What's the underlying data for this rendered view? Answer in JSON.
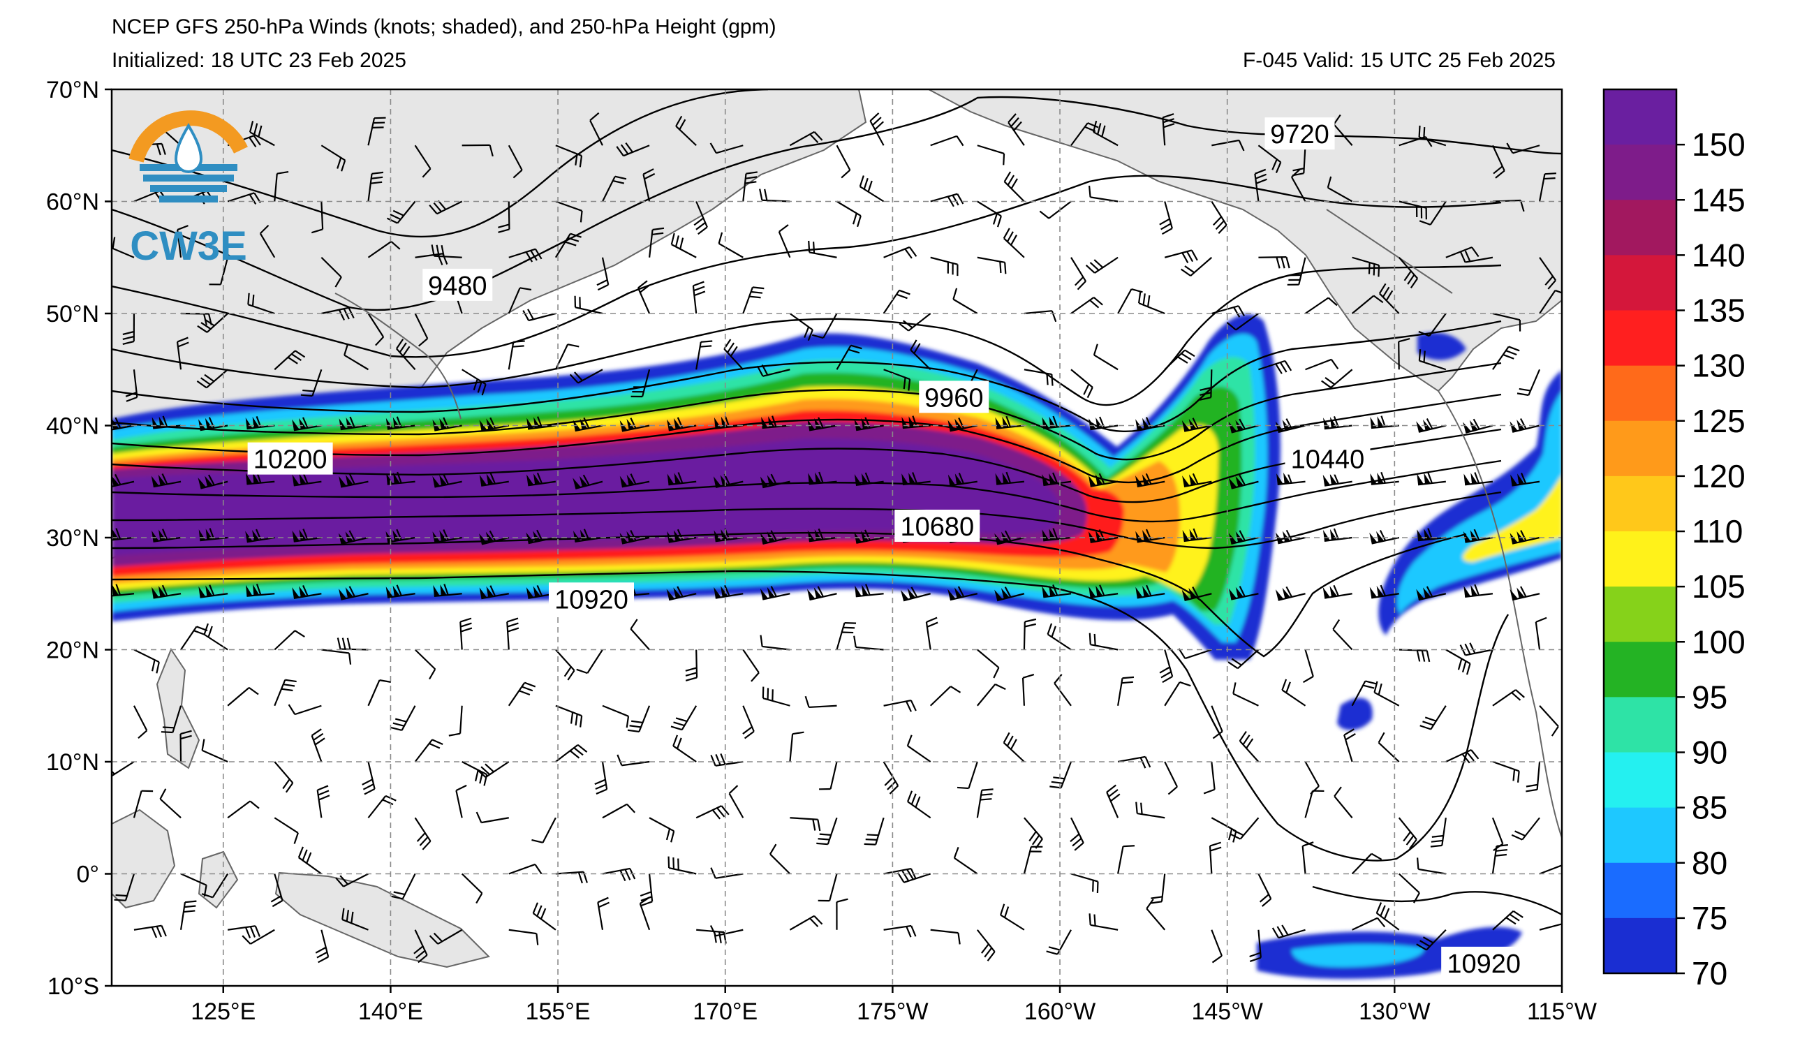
{
  "title": {
    "line1": "NCEP GFS 250-hPa Winds (knots; shaded), and 250-hPa Height (gpm)",
    "initialized": "Initialized: 18 UTC 23 Feb 2025",
    "valid": "F-045  Valid: 15 UTC 25 Feb 2025"
  },
  "logo": {
    "text": "CW3E",
    "icon": "water-drop-sun-icon"
  },
  "axes": {
    "lat_labels": [
      "70°N",
      "60°N",
      "50°N",
      "40°N",
      "30°N",
      "20°N",
      "10°N",
      "0°",
      "10°S"
    ],
    "lon_labels": [
      "125°E",
      "140°E",
      "155°E",
      "170°E",
      "175°W",
      "160°W",
      "145°W",
      "130°W",
      "115°W"
    ],
    "lat_range": [
      -10,
      70
    ],
    "lon_range_east": [
      115,
      245
    ]
  },
  "colorbar": {
    "labels": [
      "150",
      "145",
      "140",
      "135",
      "130",
      "125",
      "120",
      "110",
      "105",
      "100",
      "95",
      "90",
      "85",
      "80",
      "75",
      "70"
    ],
    "colors": [
      "#6a1fa0",
      "#7e1c8a",
      "#a2185f",
      "#d4173b",
      "#ff1f1f",
      "#ff6a1a",
      "#ff9a1a",
      "#ffc81a",
      "#fff21a",
      "#86d21a",
      "#24b324",
      "#2ee3a6",
      "#24f0f0",
      "#1ec8ff",
      "#1a6cff",
      "#1a2ed2"
    ]
  },
  "contours": {
    "labels": [
      {
        "text": "9480",
        "lat": 52.5,
        "lon": 146
      },
      {
        "text": "9720",
        "lat": 66,
        "lon": 221.5
      },
      {
        "text": "9960",
        "lat": 42.5,
        "lon": 190.5
      },
      {
        "text": "10200",
        "lat": 37,
        "lon": 131
      },
      {
        "text": "10440",
        "lat": 37,
        "lon": 224
      },
      {
        "text": "10680",
        "lat": 31,
        "lon": 189
      },
      {
        "text": "10920",
        "lat": 24.5,
        "lon": 158
      },
      {
        "text": "10920",
        "lat": -8,
        "lon": 238
      }
    ]
  },
  "colors": {
    "land": "#e6e6e6",
    "coast": "#666666",
    "grid": "#8a8a8a",
    "contour": "#000000"
  }
}
